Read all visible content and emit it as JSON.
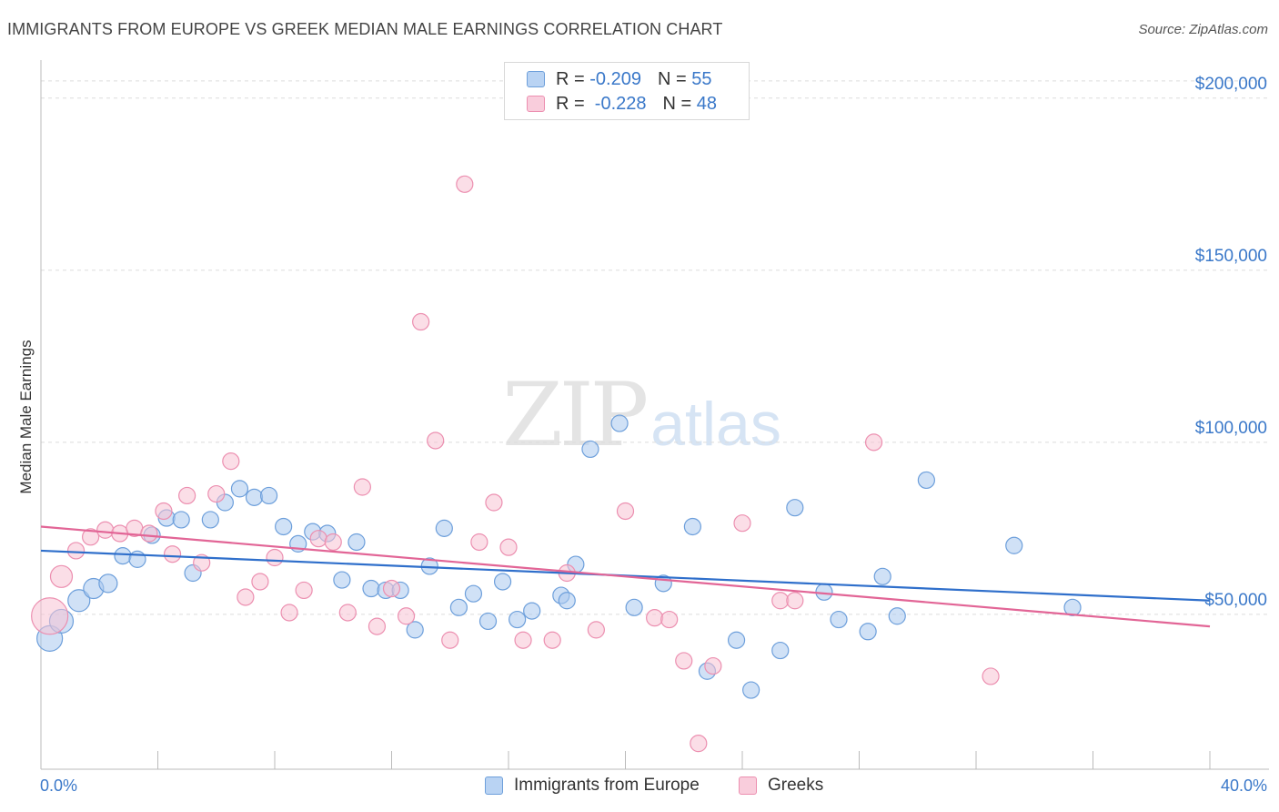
{
  "header": {
    "title": "IMMIGRANTS FROM EUROPE VS GREEK MEDIAN MALE EARNINGS CORRELATION CHART",
    "source": "Source: ZipAtlas.com"
  },
  "watermark": {
    "zip": "ZIP",
    "atlas": "atlas"
  },
  "legend": {
    "rows": [
      {
        "r_label": "R = ",
        "r_value": "-0.209",
        "n_label": "N = ",
        "n_value": "55"
      },
      {
        "r_label": "R = ",
        "r_value": " -0.228",
        "n_label": "N = ",
        "n_value": "48"
      }
    ]
  },
  "colors": {
    "blue_fill": "#a9c8ef",
    "blue_stroke": "#6d9fdb",
    "blue_line": "#2f6fcb",
    "pink_fill": "#f7c2d4",
    "pink_stroke": "#ec8fb0",
    "pink_line": "#e26596",
    "axis_text": "#3a78c9",
    "grid": "#dcdcdc"
  },
  "chart_data": {
    "type": "scatter",
    "title": "IMMIGRANTS FROM EUROPE VS GREEK MEDIAN MALE EARNINGS CORRELATION CHART",
    "xlabel": "",
    "ylabel": "Median Male Earnings",
    "xlim": [
      0,
      40
    ],
    "ylim": [
      5000,
      210000
    ],
    "x_tick_labels": [
      "0.0%",
      "40.0%"
    ],
    "y_ticks": [
      50000,
      100000,
      150000,
      200000
    ],
    "y_tick_labels": [
      "$50,000",
      "$100,000",
      "$150,000",
      "$200,000"
    ],
    "grid": true,
    "legend_position": "bottom",
    "series": [
      {
        "name": "Immigrants from Europe",
        "color": "#a9c8ef",
        "trend": {
          "x": [
            0,
            40
          ],
          "y": [
            68500,
            54000
          ]
        },
        "points": [
          {
            "x": 0.3,
            "y": 43000,
            "s": 14
          },
          {
            "x": 0.7,
            "y": 48000,
            "s": 13
          },
          {
            "x": 1.3,
            "y": 54000,
            "s": 12
          },
          {
            "x": 1.8,
            "y": 57500,
            "s": 11
          },
          {
            "x": 2.3,
            "y": 59000,
            "s": 10
          },
          {
            "x": 2.8,
            "y": 67000,
            "s": 9
          },
          {
            "x": 3.3,
            "y": 66000,
            "s": 9
          },
          {
            "x": 3.8,
            "y": 73000,
            "s": 9
          },
          {
            "x": 4.3,
            "y": 78000,
            "s": 9
          },
          {
            "x": 4.8,
            "y": 77500,
            "s": 9
          },
          {
            "x": 5.2,
            "y": 62000,
            "s": 9
          },
          {
            "x": 5.8,
            "y": 77500,
            "s": 9
          },
          {
            "x": 6.3,
            "y": 82500,
            "s": 9
          },
          {
            "x": 6.8,
            "y": 86500,
            "s": 9
          },
          {
            "x": 7.3,
            "y": 84000,
            "s": 9
          },
          {
            "x": 7.8,
            "y": 84500,
            "s": 9
          },
          {
            "x": 8.3,
            "y": 75500,
            "s": 9
          },
          {
            "x": 8.8,
            "y": 70500,
            "s": 9
          },
          {
            "x": 9.3,
            "y": 74000,
            "s": 9
          },
          {
            "x": 9.8,
            "y": 73500,
            "s": 9
          },
          {
            "x": 10.3,
            "y": 60000,
            "s": 9
          },
          {
            "x": 10.8,
            "y": 71000,
            "s": 9
          },
          {
            "x": 11.3,
            "y": 57500,
            "s": 9
          },
          {
            "x": 11.8,
            "y": 57000,
            "s": 9
          },
          {
            "x": 12.3,
            "y": 57000,
            "s": 9
          },
          {
            "x": 12.8,
            "y": 45500,
            "s": 9
          },
          {
            "x": 13.3,
            "y": 64000,
            "s": 9
          },
          {
            "x": 13.8,
            "y": 75000,
            "s": 9
          },
          {
            "x": 14.3,
            "y": 52000,
            "s": 9
          },
          {
            "x": 14.8,
            "y": 56000,
            "s": 9
          },
          {
            "x": 15.3,
            "y": 48000,
            "s": 9
          },
          {
            "x": 15.8,
            "y": 59500,
            "s": 9
          },
          {
            "x": 16.3,
            "y": 48500,
            "s": 9
          },
          {
            "x": 16.8,
            "y": 51000,
            "s": 9
          },
          {
            "x": 17.8,
            "y": 55500,
            "s": 9
          },
          {
            "x": 18.0,
            "y": 54000,
            "s": 9
          },
          {
            "x": 18.3,
            "y": 64500,
            "s": 9
          },
          {
            "x": 18.8,
            "y": 98000,
            "s": 9
          },
          {
            "x": 19.8,
            "y": 105500,
            "s": 9
          },
          {
            "x": 20.3,
            "y": 52000,
            "s": 9
          },
          {
            "x": 21.3,
            "y": 59000,
            "s": 9
          },
          {
            "x": 22.3,
            "y": 75500,
            "s": 9
          },
          {
            "x": 22.8,
            "y": 33500,
            "s": 9
          },
          {
            "x": 23.8,
            "y": 42500,
            "s": 9
          },
          {
            "x": 24.3,
            "y": 28000,
            "s": 9
          },
          {
            "x": 25.3,
            "y": 39500,
            "s": 9
          },
          {
            "x": 25.8,
            "y": 81000,
            "s": 9
          },
          {
            "x": 26.8,
            "y": 56500,
            "s": 9
          },
          {
            "x": 27.3,
            "y": 48500,
            "s": 9
          },
          {
            "x": 28.3,
            "y": 45000,
            "s": 9
          },
          {
            "x": 28.8,
            "y": 61000,
            "s": 9
          },
          {
            "x": 29.3,
            "y": 49500,
            "s": 9
          },
          {
            "x": 30.3,
            "y": 89000,
            "s": 9
          },
          {
            "x": 33.3,
            "y": 70000,
            "s": 9
          },
          {
            "x": 35.3,
            "y": 52000,
            "s": 9
          }
        ]
      },
      {
        "name": "Greeks",
        "color": "#f7c2d4",
        "trend": {
          "x": [
            0,
            40
          ],
          "y": [
            75500,
            46500
          ]
        },
        "points": [
          {
            "x": 0.3,
            "y": 49500,
            "s": 20
          },
          {
            "x": 0.7,
            "y": 61000,
            "s": 12
          },
          {
            "x": 1.2,
            "y": 68500,
            "s": 9
          },
          {
            "x": 1.7,
            "y": 72500,
            "s": 9
          },
          {
            "x": 2.2,
            "y": 74500,
            "s": 9
          },
          {
            "x": 2.7,
            "y": 73500,
            "s": 9
          },
          {
            "x": 3.2,
            "y": 75000,
            "s": 9
          },
          {
            "x": 3.7,
            "y": 73500,
            "s": 9
          },
          {
            "x": 4.2,
            "y": 80000,
            "s": 9
          },
          {
            "x": 4.5,
            "y": 67500,
            "s": 9
          },
          {
            "x": 5.0,
            "y": 84500,
            "s": 9
          },
          {
            "x": 5.5,
            "y": 65000,
            "s": 9
          },
          {
            "x": 6.0,
            "y": 85000,
            "s": 9
          },
          {
            "x": 6.5,
            "y": 94500,
            "s": 9
          },
          {
            "x": 7.0,
            "y": 55000,
            "s": 9
          },
          {
            "x": 7.5,
            "y": 59500,
            "s": 9
          },
          {
            "x": 8.0,
            "y": 66500,
            "s": 9
          },
          {
            "x": 8.5,
            "y": 50500,
            "s": 9
          },
          {
            "x": 9.0,
            "y": 57000,
            "s": 9
          },
          {
            "x": 9.5,
            "y": 72000,
            "s": 9
          },
          {
            "x": 10.0,
            "y": 71000,
            "s": 9
          },
          {
            "x": 10.5,
            "y": 50500,
            "s": 9
          },
          {
            "x": 11.0,
            "y": 87000,
            "s": 9
          },
          {
            "x": 11.5,
            "y": 46500,
            "s": 9
          },
          {
            "x": 12.0,
            "y": 57500,
            "s": 9
          },
          {
            "x": 12.5,
            "y": 49500,
            "s": 9
          },
          {
            "x": 13.0,
            "y": 135000,
            "s": 9
          },
          {
            "x": 13.5,
            "y": 100500,
            "s": 9
          },
          {
            "x": 14.0,
            "y": 42500,
            "s": 9
          },
          {
            "x": 14.5,
            "y": 175000,
            "s": 9
          },
          {
            "x": 15.0,
            "y": 71000,
            "s": 9
          },
          {
            "x": 15.5,
            "y": 82500,
            "s": 9
          },
          {
            "x": 16.0,
            "y": 69500,
            "s": 9
          },
          {
            "x": 16.5,
            "y": 42500,
            "s": 9
          },
          {
            "x": 17.5,
            "y": 42500,
            "s": 9
          },
          {
            "x": 18.0,
            "y": 62000,
            "s": 9
          },
          {
            "x": 19.0,
            "y": 45500,
            "s": 9
          },
          {
            "x": 20.0,
            "y": 80000,
            "s": 9
          },
          {
            "x": 21.0,
            "y": 49000,
            "s": 9
          },
          {
            "x": 21.5,
            "y": 48500,
            "s": 9
          },
          {
            "x": 22.0,
            "y": 36500,
            "s": 9
          },
          {
            "x": 22.5,
            "y": 12500,
            "s": 9
          },
          {
            "x": 23.0,
            "y": 35000,
            "s": 9
          },
          {
            "x": 24.0,
            "y": 76500,
            "s": 9
          },
          {
            "x": 25.3,
            "y": 54000,
            "s": 9
          },
          {
            "x": 25.8,
            "y": 54000,
            "s": 9
          },
          {
            "x": 28.5,
            "y": 100000,
            "s": 9
          },
          {
            "x": 32.5,
            "y": 32000,
            "s": 9
          }
        ]
      }
    ]
  }
}
